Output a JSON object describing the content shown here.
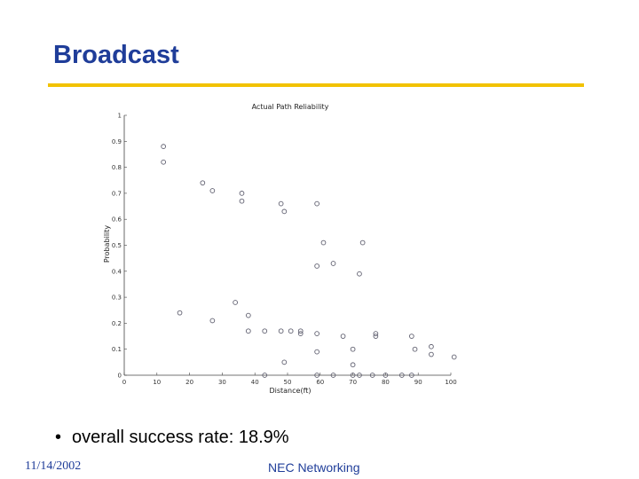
{
  "slide": {
    "title": "Broadcast",
    "bullet_text": "overall success rate: 18.9%",
    "footer_date": "11/14/2002",
    "footer_org": "NEC Networking"
  },
  "colors": {
    "title": "#1f3d99",
    "rule": "#f2c200",
    "marker": "#606070",
    "axis": "#444444"
  },
  "chart_data": {
    "type": "scatter",
    "title": "Actual Path Reliability",
    "xlabel": "Distance(ft)",
    "ylabel": "Probability",
    "xlim": [
      0,
      100
    ],
    "ylim": [
      0,
      1
    ],
    "x_ticks": [
      0,
      10,
      20,
      30,
      40,
      50,
      60,
      70,
      80,
      90,
      100
    ],
    "y_ticks": [
      0,
      0.1,
      0.2,
      0.3,
      0.4,
      0.5,
      0.6,
      0.7,
      0.8,
      0.9,
      1
    ],
    "x_tick_labels": [
      "0",
      "10",
      "20",
      "30",
      "40",
      "50",
      "60",
      "70",
      "80",
      "90",
      "100"
    ],
    "y_tick_labels": [
      "0",
      "0.1",
      "0.2",
      "0.3",
      "0.4",
      "0.5",
      "0.6",
      "0.7",
      "0.8",
      "0.9",
      "1"
    ],
    "grid": false,
    "marker": "circle-open",
    "points": [
      {
        "x": 12,
        "y": 0.88
      },
      {
        "x": 12,
        "y": 0.82
      },
      {
        "x": 17,
        "y": 0.24
      },
      {
        "x": 24,
        "y": 0.74
      },
      {
        "x": 27,
        "y": 0.71
      },
      {
        "x": 27,
        "y": 0.21
      },
      {
        "x": 34,
        "y": 0.28
      },
      {
        "x": 36,
        "y": 0.7
      },
      {
        "x": 36,
        "y": 0.67
      },
      {
        "x": 38,
        "y": 0.23
      },
      {
        "x": 38,
        "y": 0.17
      },
      {
        "x": 43,
        "y": 0.17
      },
      {
        "x": 43,
        "y": 0.0
      },
      {
        "x": 48,
        "y": 0.66
      },
      {
        "x": 48,
        "y": 0.17
      },
      {
        "x": 49,
        "y": 0.63
      },
      {
        "x": 49,
        "y": 0.05
      },
      {
        "x": 51,
        "y": 0.17
      },
      {
        "x": 54,
        "y": 0.17
      },
      {
        "x": 54,
        "y": 0.16
      },
      {
        "x": 59,
        "y": 0.66
      },
      {
        "x": 59,
        "y": 0.42
      },
      {
        "x": 59,
        "y": 0.16
      },
      {
        "x": 59,
        "y": 0.09
      },
      {
        "x": 59,
        "y": 0.0
      },
      {
        "x": 61,
        "y": 0.51
      },
      {
        "x": 64,
        "y": 0.43
      },
      {
        "x": 64,
        "y": 0.0
      },
      {
        "x": 67,
        "y": 0.15
      },
      {
        "x": 70,
        "y": 0.1
      },
      {
        "x": 70,
        "y": 0.04
      },
      {
        "x": 70,
        "y": 0.0
      },
      {
        "x": 72,
        "y": 0.39
      },
      {
        "x": 72,
        "y": 0.0
      },
      {
        "x": 73,
        "y": 0.51
      },
      {
        "x": 76,
        "y": 0.0
      },
      {
        "x": 77,
        "y": 0.15
      },
      {
        "x": 77,
        "y": 0.16
      },
      {
        "x": 80,
        "y": 0.0
      },
      {
        "x": 85,
        "y": 0.0
      },
      {
        "x": 88,
        "y": 0.15
      },
      {
        "x": 88,
        "y": 0.0
      },
      {
        "x": 89,
        "y": 0.1
      },
      {
        "x": 94,
        "y": 0.11
      },
      {
        "x": 94,
        "y": 0.08
      },
      {
        "x": 101,
        "y": 0.07
      }
    ]
  }
}
